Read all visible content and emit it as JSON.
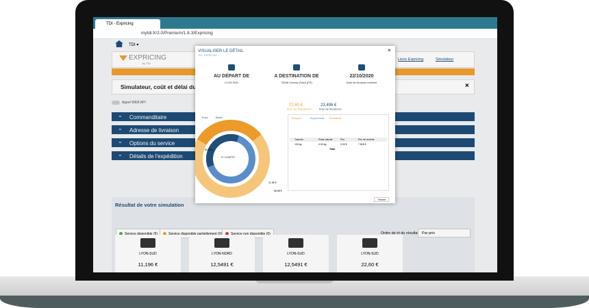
{
  "browser": {
    "tab": "TDI - Expricing",
    "url": "mytdi.fr/2.0/Premium/1.8.3/Expricing"
  },
  "app": {
    "account": "TDI ▾",
    "logo": "EXPRICING",
    "logo_sub": "by TDI",
    "links": [
      "Liens Expricing",
      "Simulateur"
    ],
    "page_title": "Simulateur, coût et délai du tran",
    "toggle": "Appel WEB API",
    "sections": [
      "Commanditaire",
      "Adresse de livraison",
      "Options du service",
      "Détails de l'expédition"
    ],
    "results_title": "Résultat de votre simulation",
    "filters": [
      "Service disponible (5)",
      "Service disponible partiellement (0)",
      "Service non disponible (0)"
    ],
    "sort_label": "Ordre de tri du résultat",
    "sort_value": "Par prix",
    "cards": [
      {
        "name": "LYON-SUD",
        "price": "11,196 €"
      },
      {
        "name": "LYON-NORD",
        "price": "12,5491 €"
      },
      {
        "name": "LYON-SUD",
        "price": "12,5491 €"
      },
      {
        "name": "LYON-SUD",
        "price": "22,60 €"
      }
    ]
  },
  "modal": {
    "title": "VISUALISER LE DÉTAIL",
    "subtitle": "TDI - EXPRICING",
    "columns": [
      {
        "head": "AU DÉPART DE",
        "sub": "LYON-SUD"
      },
      {
        "head": "A DESTINATION DE",
        "sub": "75008 Grenay-Grépt (FR)"
      },
      {
        "head": "22/10/2020",
        "sub": "Date de livraison estimée"
      }
    ],
    "prices": [
      {
        "value": "22,60 €",
        "label": "PRIX DU TRANSPORT"
      },
      {
        "value": "23,496 €",
        "label": "PRIX DE REVIENTS"
      }
    ],
    "chart_tabs": [
      "Euro",
      "Barre"
    ],
    "donut_center": "N° COMPTE",
    "donut_labels": [
      "50.89 €",
      "11.98 €",
      "68.88 €"
    ],
    "tabs": [
      "Transport",
      "Suppléments",
      "Prestations"
    ],
    "table_head": [
      "Tranche",
      "Poids calculé",
      "Prix",
      "Prix de revente"
    ],
    "table_row": [
      "100 kg",
      "0.00 kg",
      "0.40 €",
      "7.818 €"
    ],
    "total_label": "Total",
    "close": "Fermer"
  }
}
